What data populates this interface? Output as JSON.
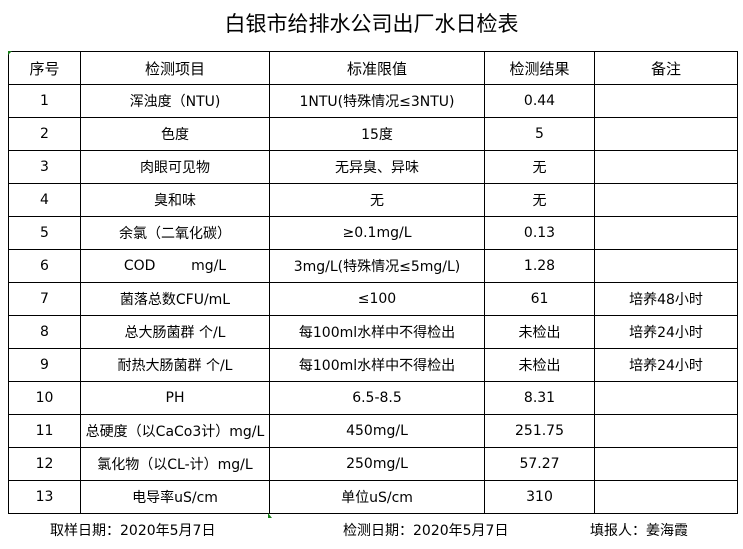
{
  "title": "白银市给排水公司出厂水日检表",
  "table": {
    "headers": [
      "序号",
      "检测项目",
      "标准限值",
      "检测结果",
      "备注"
    ],
    "rows": [
      [
        "1",
        "浑浊度（NTU)",
        "1NTU(特殊情况≤3NTU)",
        "0.44",
        ""
      ],
      [
        "2",
        "色度",
        "15度",
        "5",
        ""
      ],
      [
        "3",
        "肉眼可见物",
        "无异臭、异味",
        "无",
        ""
      ],
      [
        "4",
        "臭和味",
        "无",
        "无",
        ""
      ],
      [
        "5",
        "余氯（二氧化碳）",
        "≥0.1mg/L",
        "0.13",
        ""
      ],
      [
        "6",
        "COD        mg/L",
        "3mg/L(特殊情况≤5mg/L)",
        "1.28",
        ""
      ],
      [
        "7",
        "菌落总数CFU/mL",
        "≤100",
        "61",
        "培养48小时"
      ],
      [
        "8",
        "总大肠菌群 个/L",
        "每100ml水样中不得检出",
        "未检出",
        "培养24小时"
      ],
      [
        "9",
        "耐热大肠菌群 个/L",
        "每100ml水样中不得检出",
        "未检出",
        "培养24小时"
      ],
      [
        "10",
        "PH",
        "6.5-8.5",
        "8.31",
        ""
      ],
      [
        "11",
        "总硬度（以CaCo3计）mg/L",
        "450mg/L",
        "251.75",
        ""
      ],
      [
        "12",
        "氯化物（以CL-计）mg/L",
        "250mg/L",
        "57.27",
        ""
      ],
      [
        "13",
        "电导率uS/cm",
        "单位uS/cm",
        "310",
        ""
      ]
    ]
  },
  "footer": {
    "sampling_date": "取样日期：2020年5月7日",
    "test_date": "检测日期：2020年5月7日",
    "reporter": "填报人：姜海霞"
  }
}
